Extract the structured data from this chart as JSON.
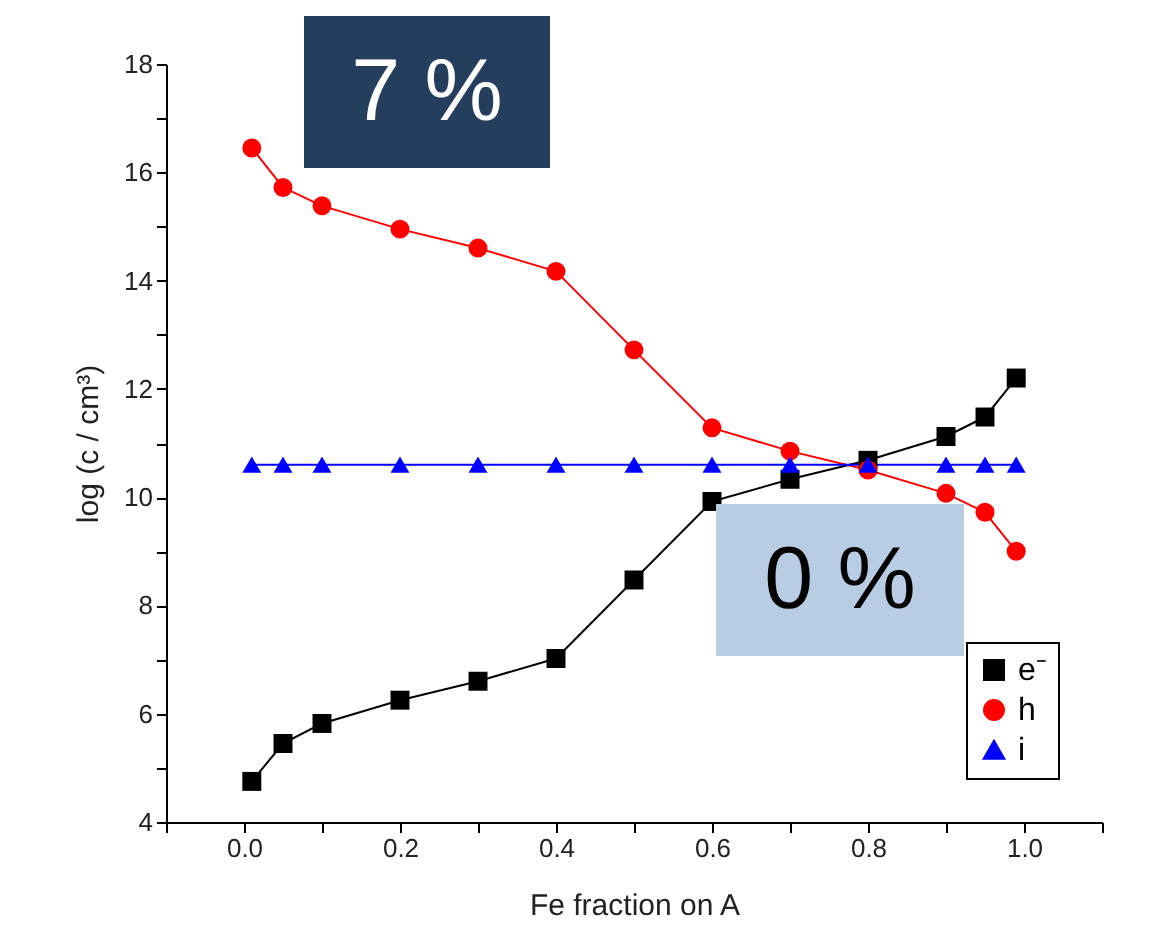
{
  "chart_data": {
    "type": "line",
    "xlabel": "Fe fraction on A",
    "ylabel": "log (c / cm³)",
    "annotations": [
      "7 %",
      "0 %"
    ],
    "x": [
      0.01,
      0.05,
      0.1,
      0.2,
      0.3,
      0.4,
      0.5,
      0.6,
      0.7,
      0.8,
      0.9,
      0.95,
      0.99
    ],
    "series": [
      {
        "name": "e⁻",
        "color": "#000000",
        "marker": "square",
        "values": [
          4.75,
          5.45,
          5.82,
          6.25,
          6.6,
          7.02,
          8.47,
          9.92,
          10.33,
          10.68,
          11.12,
          11.48,
          12.2
        ]
      },
      {
        "name": "h",
        "color": "#ff0000",
        "marker": "circle",
        "values": [
          16.45,
          15.72,
          15.38,
          14.95,
          14.6,
          14.17,
          12.72,
          11.28,
          10.85,
          10.5,
          10.07,
          9.72,
          9.0
        ]
      },
      {
        "name": "i",
        "color": "#0000ff",
        "marker": "triangle",
        "values": [
          10.6,
          10.6,
          10.6,
          10.6,
          10.6,
          10.6,
          10.6,
          10.6,
          10.6,
          10.6,
          10.6,
          10.6,
          10.6
        ]
      }
    ],
    "xlim": [
      -0.1,
      1.1
    ],
    "xticks": [
      {
        "value": -0.1,
        "label": null
      },
      {
        "value": 0,
        "label": "0.0"
      },
      {
        "value": 0.1,
        "label": null
      },
      {
        "value": 0.2,
        "label": "0.2"
      },
      {
        "value": 0.3,
        "label": null
      },
      {
        "value": 0.4,
        "label": "0.4"
      },
      {
        "value": 0.5,
        "label": null
      },
      {
        "value": 0.6,
        "label": "0.6"
      },
      {
        "value": 0.7,
        "label": null
      },
      {
        "value": 0.8,
        "label": "0.8"
      },
      {
        "value": 0.9,
        "label": null
      },
      {
        "value": 1,
        "label": "1.0"
      },
      {
        "value": 1.1,
        "label": null
      }
    ],
    "ylim": [
      4,
      18
    ],
    "yticks": [
      4,
      {
        "value": 5,
        "label": null
      },
      6,
      {
        "value": 7,
        "label": null
      },
      8,
      {
        "value": 9,
        "label": null
      },
      10,
      {
        "value": 11,
        "label": null
      },
      12,
      {
        "value": 13,
        "label": null
      },
      14,
      {
        "value": 15,
        "label": null
      },
      16,
      {
        "value": 17,
        "label": null
      },
      18
    ],
    "legend": "bottom right",
    "grid": false,
    "line_style": "solid"
  }
}
